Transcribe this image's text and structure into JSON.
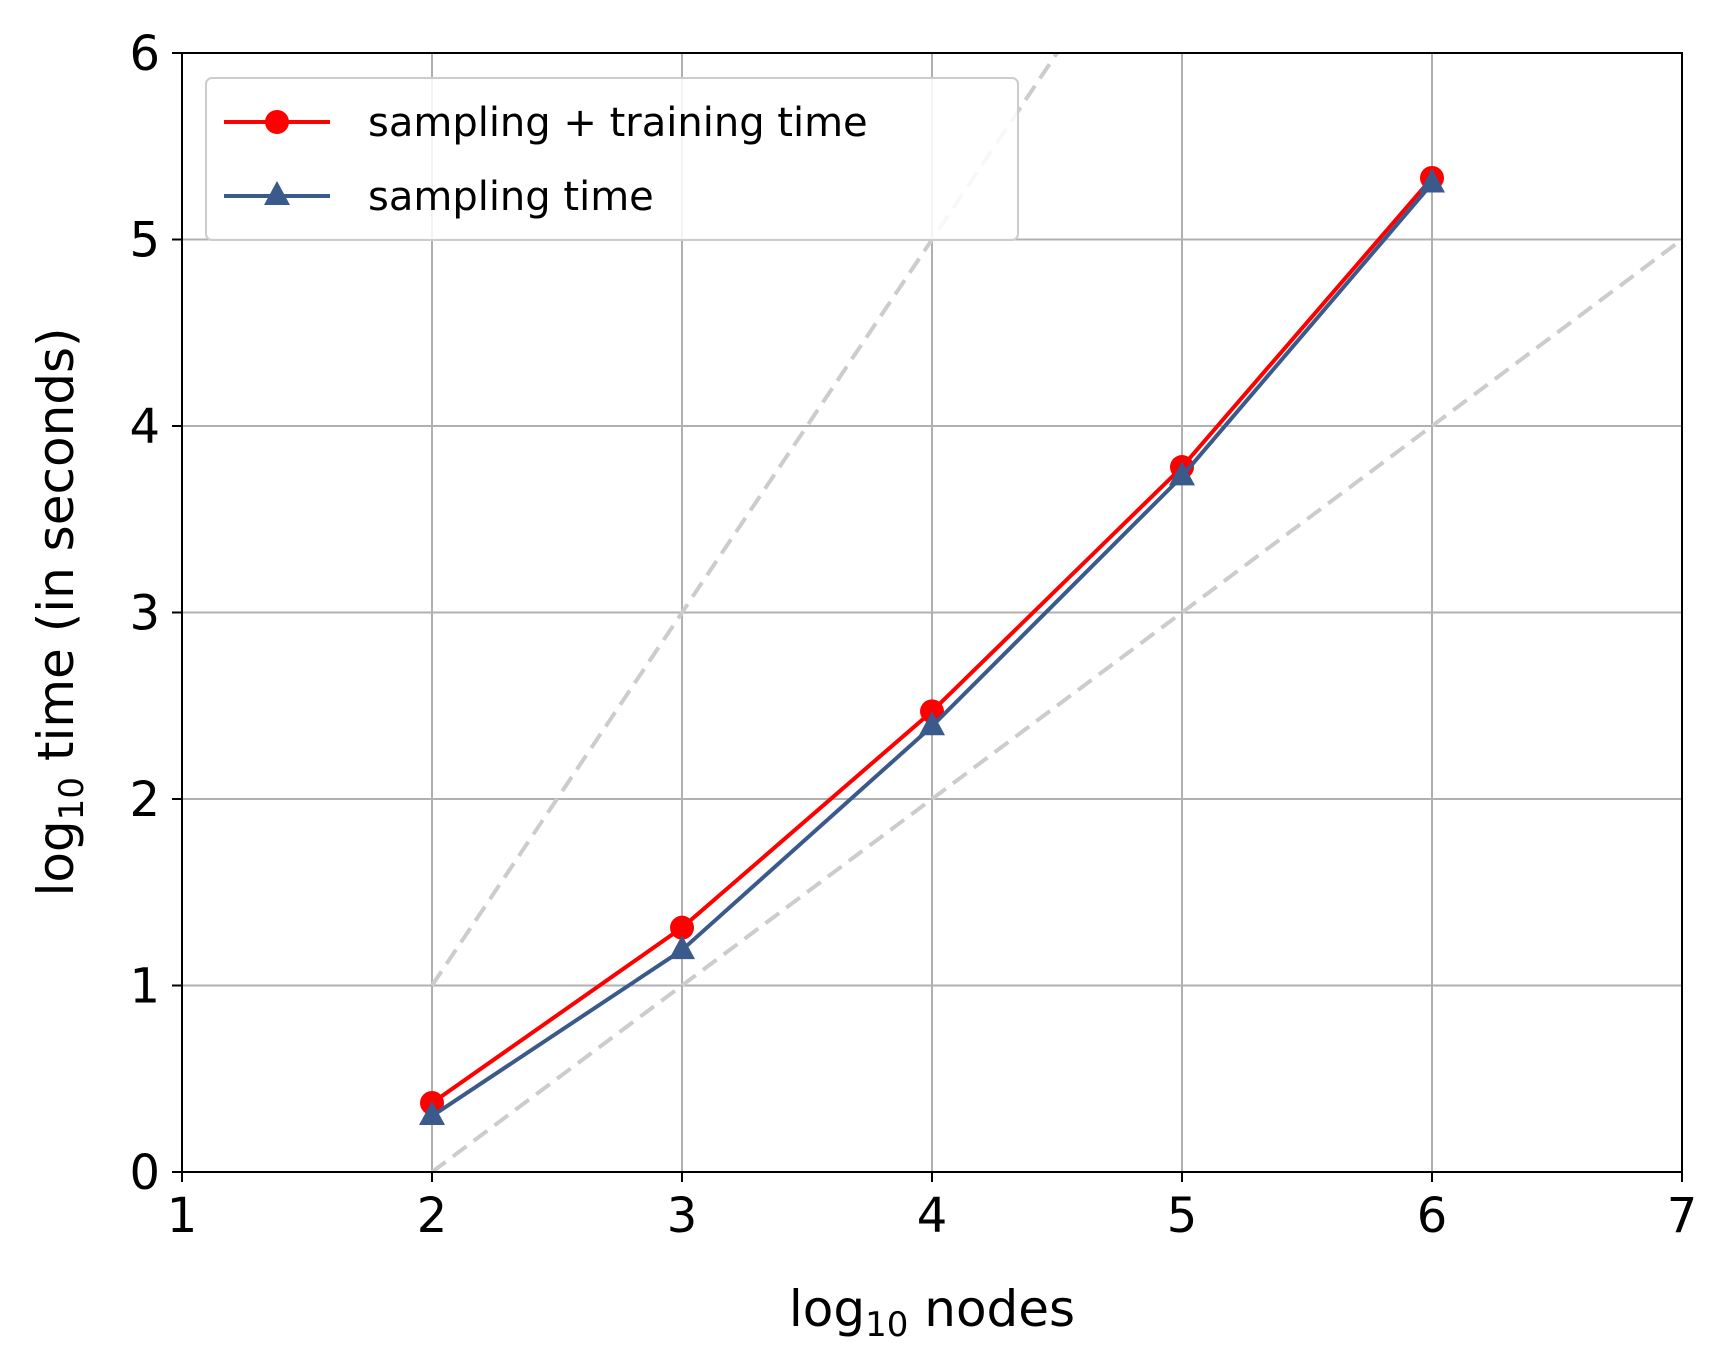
{
  "chart_data": {
    "type": "line",
    "xlabel": {
      "prefix": "log",
      "subscript": "10",
      "suffix": " nodes"
    },
    "ylabel": {
      "prefix": "log",
      "subscript": "10",
      "suffix": " time (in seconds)"
    },
    "xlim": [
      1,
      7
    ],
    "ylim": [
      0,
      6
    ],
    "x_ticks": [
      "1",
      "2",
      "3",
      "4",
      "5",
      "6",
      "7"
    ],
    "y_ticks": [
      "0",
      "1",
      "2",
      "3",
      "4",
      "5",
      "6"
    ],
    "grid": true,
    "legend_position": "top-left",
    "series": [
      {
        "name": "sampling + training time",
        "color": "#ff0000",
        "marker": "circle",
        "x": [
          2,
          3,
          4,
          5,
          6
        ],
        "y": [
          0.37,
          1.31,
          2.47,
          3.78,
          5.33
        ]
      },
      {
        "name": "sampling time",
        "color": "#3a5a8c",
        "marker": "triangle",
        "x": [
          2,
          3,
          4,
          5,
          6
        ],
        "y": [
          0.3,
          1.19,
          2.39,
          3.73,
          5.3
        ]
      }
    ],
    "reference_lines": [
      {
        "style": "dashed",
        "color": "#cccccc",
        "x": [
          2,
          7
        ],
        "y": [
          1,
          11
        ]
      },
      {
        "style": "dashed",
        "color": "#cccccc",
        "x": [
          2,
          7
        ],
        "y": [
          0,
          5
        ]
      }
    ]
  }
}
